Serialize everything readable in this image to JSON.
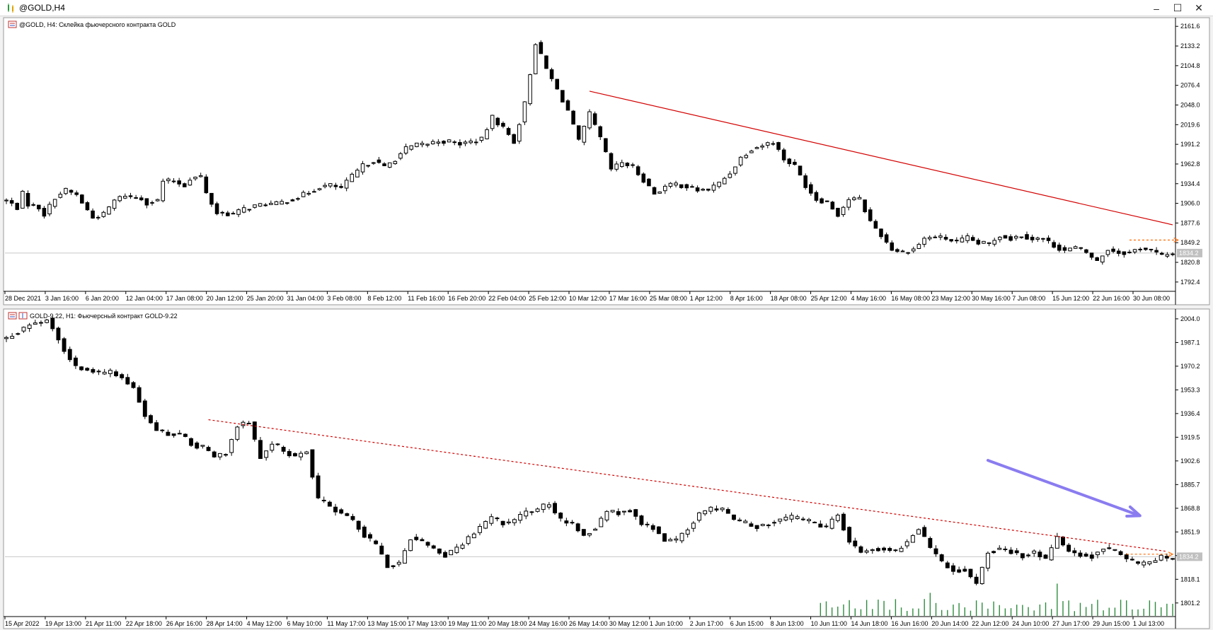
{
  "window": {
    "title": "@GOLD,H4",
    "icons": [
      "chart-app-icon",
      "minimize-icon",
      "maximize-icon",
      "close-icon"
    ],
    "controls": {
      "minimize": "–",
      "maximize": "☐",
      "close": "✕"
    }
  },
  "chart_data": [
    {
      "type": "candlestick",
      "header": "@GOLD, H4:  Склейка фьючерсного контракта GOLD",
      "symbol": "@GOLD",
      "timeframe": "H4",
      "y_ticks": [
        "2161.6",
        "2133.2",
        "2104.8",
        "2076.4",
        "2048.0",
        "2019.6",
        "1991.2",
        "1962.8",
        "1934.4",
        "1906.0",
        "1877.6",
        "1849.2",
        "1820.8",
        "1792.4"
      ],
      "ylim": [
        1780,
        2170
      ],
      "x_ticks": [
        "28 Dec 2021",
        "3 Jan 16:00",
        "6 Jan 20:00",
        "12 Jan 04:00",
        "17 Jan 08:00",
        "20 Jan 12:00",
        "25 Jan 20:00",
        "31 Jan 04:00",
        "3 Feb 08:00",
        "8 Feb 12:00",
        "11 Feb 16:00",
        "16 Feb 20:00",
        "22 Feb 04:00",
        "25 Feb 12:00",
        "10 Mar 12:00",
        "17 Mar 16:00",
        "25 Mar 08:00",
        "1 Apr 12:00",
        "8 Apr 16:00",
        "18 Apr 08:00",
        "25 Apr 12:00",
        "4 May 16:00",
        "16 May 08:00",
        "23 May 12:00",
        "30 May 16:00",
        "7 Jun 08:00",
        "15 Jun 12:00",
        "22 Jun 16:00",
        "30 Jun 08:00"
      ],
      "current_price": "1834.2",
      "price_path": [
        [
          0,
          1910
        ],
        [
          2,
          1900
        ],
        [
          3,
          1920
        ],
        [
          4,
          1905
        ],
        [
          6,
          1900
        ],
        [
          7,
          1890
        ],
        [
          8,
          1902
        ],
        [
          9,
          1915
        ],
        [
          11,
          1925
        ],
        [
          13,
          1918
        ],
        [
          16,
          1885
        ],
        [
          18,
          1890
        ],
        [
          20,
          1910
        ],
        [
          22,
          1918
        ],
        [
          23,
          1915
        ],
        [
          25,
          1913
        ],
        [
          26,
          1907
        ],
        [
          28,
          1910
        ],
        [
          29,
          1938
        ],
        [
          31,
          1938
        ],
        [
          33,
          1932
        ],
        [
          34,
          1942
        ],
        [
          36,
          1945
        ],
        [
          37,
          1920
        ],
        [
          39,
          1892
        ],
        [
          40,
          1892
        ],
        [
          42,
          1890
        ],
        [
          44,
          1898
        ],
        [
          46,
          1902
        ],
        [
          48,
          1905
        ],
        [
          50,
          1905
        ],
        [
          52,
          1910
        ],
        [
          54,
          1915
        ],
        [
          56,
          1922
        ],
        [
          58,
          1930
        ],
        [
          60,
          1932
        ],
        [
          62,
          1928
        ],
        [
          64,
          1945
        ],
        [
          66,
          1960
        ],
        [
          68,
          1968
        ],
        [
          70,
          1958
        ],
        [
          72,
          1970
        ],
        [
          74,
          1985
        ],
        [
          76,
          1990
        ],
        [
          78,
          1992
        ],
        [
          80,
          1996
        ],
        [
          82,
          1995
        ],
        [
          84,
          1992
        ],
        [
          86,
          1995
        ],
        [
          88,
          1998
        ],
        [
          90,
          2030
        ],
        [
          92,
          2015
        ],
        [
          94,
          1995
        ],
        [
          96,
          2050
        ],
        [
          98,
          2138
        ],
        [
          100,
          2100
        ],
        [
          102,
          2070
        ],
        [
          104,
          2040
        ],
        [
          106,
          1995
        ],
        [
          108,
          2035
        ],
        [
          110,
          2000
        ],
        [
          112,
          1955
        ],
        [
          114,
          1965
        ],
        [
          116,
          1958
        ],
        [
          118,
          1940
        ],
        [
          120,
          1920
        ],
        [
          122,
          1930
        ],
        [
          124,
          1934
        ],
        [
          126,
          1930
        ],
        [
          128,
          1925
        ],
        [
          130,
          1926
        ],
        [
          132,
          1935
        ],
        [
          134,
          1950
        ],
        [
          136,
          1972
        ],
        [
          138,
          1985
        ],
        [
          140,
          1990
        ],
        [
          142,
          1995
        ],
        [
          144,
          1970
        ],
        [
          146,
          1960
        ],
        [
          148,
          1932
        ],
        [
          150,
          1912
        ],
        [
          152,
          1908
        ],
        [
          154,
          1890
        ],
        [
          156,
          1912
        ],
        [
          158,
          1912
        ],
        [
          160,
          1880
        ],
        [
          162,
          1860
        ],
        [
          164,
          1840
        ],
        [
          166,
          1835
        ],
        [
          168,
          1840
        ],
        [
          170,
          1855
        ],
        [
          172,
          1858
        ],
        [
          174,
          1855
        ],
        [
          176,
          1850
        ],
        [
          178,
          1856
        ],
        [
          180,
          1848
        ],
        [
          182,
          1848
        ],
        [
          184,
          1860
        ],
        [
          186,
          1855
        ],
        [
          188,
          1860
        ],
        [
          190,
          1855
        ],
        [
          192,
          1855
        ],
        [
          194,
          1845
        ],
        [
          196,
          1838
        ],
        [
          198,
          1842
        ],
        [
          200,
          1835
        ],
        [
          202,
          1822
        ],
        [
          204,
          1840
        ],
        [
          206,
          1835
        ],
        [
          208,
          1835
        ],
        [
          210,
          1842
        ],
        [
          212,
          1838
        ],
        [
          214,
          1830
        ],
        [
          216,
          1834
        ]
      ],
      "trendlines": [
        {
          "from": [
            108,
            2068
          ],
          "to": [
            216,
            1875
          ],
          "color": "#d40000",
          "style": "solid"
        }
      ],
      "annotations": [
        {
          "type": "dotted-arrow",
          "y": 1853,
          "from": 208,
          "to": 217,
          "color": "#ff6a00"
        }
      ]
    },
    {
      "type": "candlestick",
      "header": "GOLD-9.22, H1:  Фьючерсный контракт GOLD-9.22",
      "symbol": "GOLD-9.22",
      "timeframe": "H1",
      "y_ticks": [
        "2004.0",
        "1987.1",
        "1970.2",
        "1953.3",
        "1936.4",
        "1919.5",
        "1902.6",
        "1885.7",
        "1868.8",
        "1851.9",
        "1835.0",
        "1818.1",
        "1801.2"
      ],
      "ylim": [
        1792,
        2008
      ],
      "x_ticks": [
        "15 Apr 2022",
        "19 Apr 13:00",
        "21 Apr 11:00",
        "22 Apr 18:00",
        "26 Apr 16:00",
        "28 Apr 14:00",
        "4 May 12:00",
        "6 May 10:00",
        "11 May 17:00",
        "13 May 15:00",
        "17 May 13:00",
        "19 May 11:00",
        "20 May 18:00",
        "24 May 16:00",
        "26 May 14:00",
        "30 May 12:00",
        "1 Jun 10:00",
        "2 Jun 17:00",
        "6 Jun 15:00",
        "8 Jun 13:00",
        "10 Jun 11:00",
        "14 Jun 18:00",
        "16 Jun 16:00",
        "20 Jun 14:00",
        "22 Jun 12:00",
        "24 Jun 10:00",
        "27 Jun 17:00",
        "29 Jun 15:00",
        "1 Jul 13:00"
      ],
      "current_price": "1834.2",
      "price_path": [
        [
          0,
          1990
        ],
        [
          2,
          1995
        ],
        [
          4,
          2000
        ],
        [
          6,
          2002
        ],
        [
          7,
          2004
        ],
        [
          8,
          1998
        ],
        [
          10,
          1982
        ],
        [
          12,
          1970
        ],
        [
          14,
          1968
        ],
        [
          16,
          1965
        ],
        [
          18,
          1966
        ],
        [
          20,
          1962
        ],
        [
          22,
          1955
        ],
        [
          24,
          1935
        ],
        [
          26,
          1925
        ],
        [
          28,
          1922
        ],
        [
          30,
          1922
        ],
        [
          32,
          1915
        ],
        [
          34,
          1912
        ],
        [
          36,
          1905
        ],
        [
          38,
          1908
        ],
        [
          40,
          1928
        ],
        [
          42,
          1930
        ],
        [
          44,
          1905
        ],
        [
          46,
          1915
        ],
        [
          48,
          1910
        ],
        [
          50,
          1905
        ],
        [
          52,
          1910
        ],
        [
          54,
          1875
        ],
        [
          56,
          1870
        ],
        [
          58,
          1865
        ],
        [
          60,
          1860
        ],
        [
          62,
          1850
        ],
        [
          64,
          1842
        ],
        [
          66,
          1828
        ],
        [
          68,
          1830
        ],
        [
          70,
          1848
        ],
        [
          72,
          1845
        ],
        [
          74,
          1840
        ],
        [
          76,
          1835
        ],
        [
          78,
          1840
        ],
        [
          80,
          1848
        ],
        [
          82,
          1855
        ],
        [
          84,
          1862
        ],
        [
          86,
          1858
        ],
        [
          88,
          1860
        ],
        [
          90,
          1866
        ],
        [
          92,
          1868
        ],
        [
          94,
          1872
        ],
        [
          96,
          1860
        ],
        [
          98,
          1858
        ],
        [
          100,
          1850
        ],
        [
          102,
          1855
        ],
        [
          104,
          1866
        ],
        [
          106,
          1866
        ],
        [
          108,
          1868
        ],
        [
          110,
          1858
        ],
        [
          112,
          1855
        ],
        [
          114,
          1846
        ],
        [
          116,
          1845
        ],
        [
          118,
          1855
        ],
        [
          120,
          1865
        ],
        [
          122,
          1868
        ],
        [
          124,
          1868
        ],
        [
          126,
          1860
        ],
        [
          128,
          1858
        ],
        [
          130,
          1856
        ],
        [
          132,
          1858
        ],
        [
          134,
          1860
        ],
        [
          136,
          1862
        ],
        [
          138,
          1860
        ],
        [
          140,
          1858
        ],
        [
          142,
          1855
        ],
        [
          144,
          1865
        ],
        [
          146,
          1845
        ],
        [
          148,
          1838
        ],
        [
          150,
          1840
        ],
        [
          152,
          1840
        ],
        [
          154,
          1838
        ],
        [
          156,
          1845
        ],
        [
          158,
          1855
        ],
        [
          160,
          1840
        ],
        [
          162,
          1830
        ],
        [
          164,
          1825
        ],
        [
          166,
          1825
        ],
        [
          168,
          1815
        ],
        [
          170,
          1838
        ],
        [
          172,
          1840
        ],
        [
          174,
          1838
        ],
        [
          176,
          1835
        ],
        [
          178,
          1838
        ],
        [
          180,
          1832
        ],
        [
          182,
          1848
        ],
        [
          184,
          1838
        ],
        [
          186,
          1836
        ],
        [
          188,
          1835
        ],
        [
          190,
          1840
        ],
        [
          192,
          1838
        ],
        [
          194,
          1832
        ],
        [
          196,
          1828
        ],
        [
          198,
          1830
        ],
        [
          200,
          1834
        ]
      ],
      "volume_start_index": 141,
      "trendlines": [
        {
          "from": [
            35,
            1932
          ],
          "to": [
            201,
            1838
          ],
          "color": "#d40000",
          "style": "dotted"
        }
      ],
      "annotations": [
        {
          "type": "dotted-arrow",
          "y": 1836,
          "from": 194,
          "to": 202,
          "color": "#ff6a00"
        },
        {
          "type": "arrow",
          "from": [
            170,
            1903
          ],
          "to": [
            196,
            1864
          ],
          "color": "#8a7cf0"
        }
      ]
    }
  ]
}
